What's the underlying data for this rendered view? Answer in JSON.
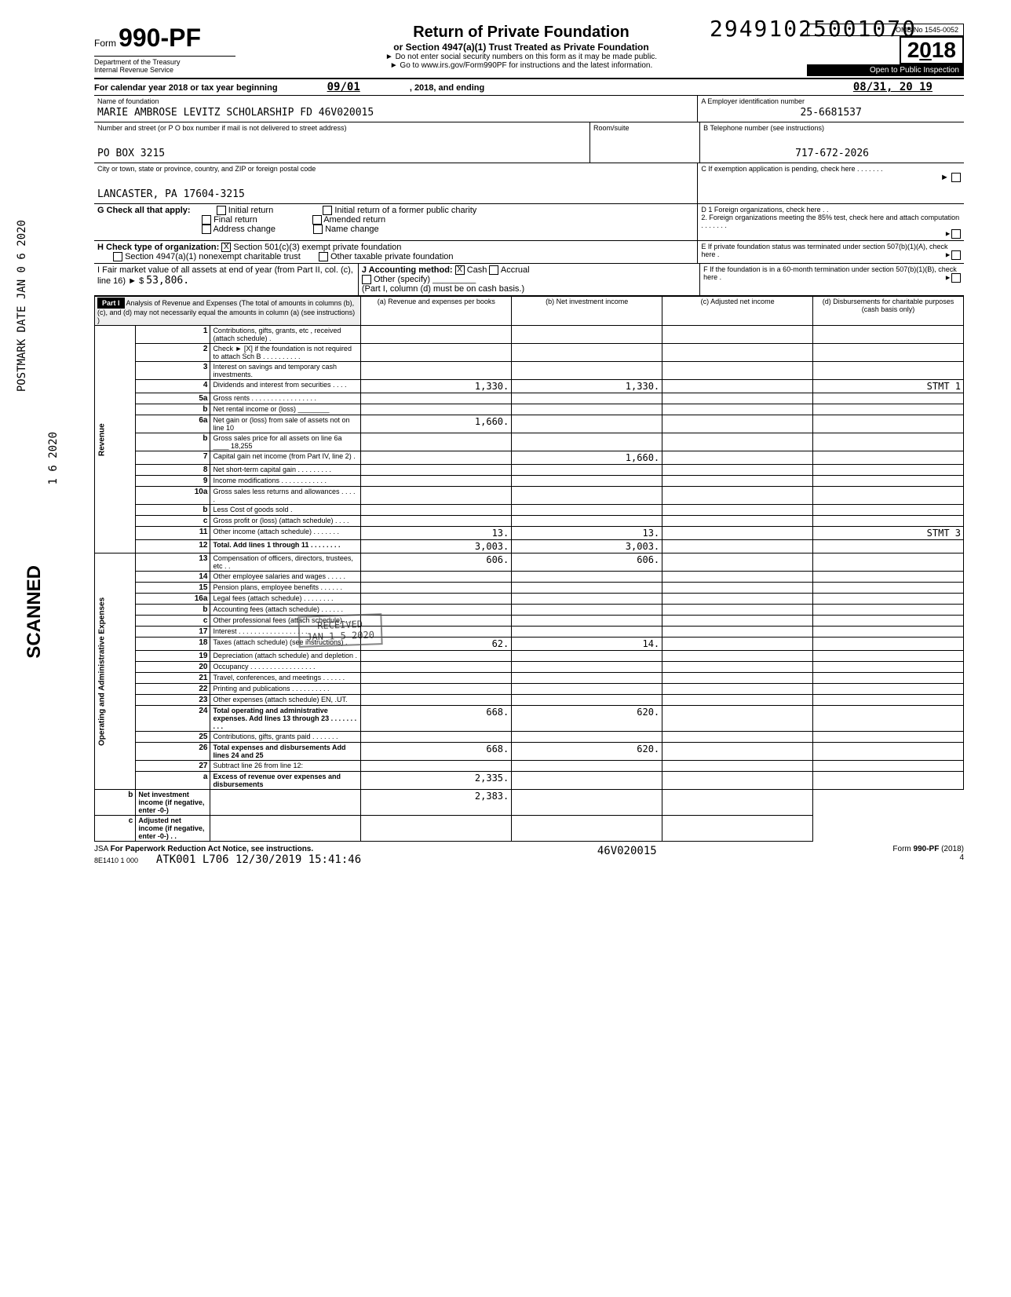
{
  "stamp_top": "29491025001070",
  "form": {
    "prefix": "Form",
    "number": "990-PF",
    "dept1": "Department of the Treasury",
    "dept2": "Internal Revenue Service",
    "title": "Return of Private Foundation",
    "subtitle": "or Section 4947(a)(1) Trust Treated as Private Foundation",
    "warn": "► Do not enter social security numbers on this form as it may be made public.",
    "goto": "► Go to www.irs.gov/Form990PF for instructions and the latest information.",
    "omb": "OMB No 1545-0052",
    "year": "2018",
    "inspect": "Open to Public Inspection"
  },
  "cal": {
    "text": "For calendar year 2018 or tax year beginning",
    "begin": "09/01",
    "mid": ", 2018, and ending",
    "end": "08/31, 20 19"
  },
  "name_lbl": "Name of foundation",
  "name": "MARIE AMBROSE LEVITZ SCHOLARSHIP FD 46V020015",
  "addr_lbl": "Number and street (or P O box number if mail is not delivered to street address)",
  "room_lbl": "Room/suite",
  "addr": "PO BOX 3215",
  "city_lbl": "City or town, state or province, country, and ZIP or foreign postal code",
  "city": "LANCASTER, PA 17604-3215",
  "ein_lbl": "A  Employer identification number",
  "ein": "25-6681537",
  "tel_lbl": "B  Telephone number (see instructions)",
  "tel": "717-672-2026",
  "c_lbl": "C  If exemption application is pending, check here . . . . . . .",
  "g_lbl": "G Check all that apply:",
  "g_opts": [
    "Initial return",
    "Final return",
    "Address change",
    "Initial return of a former public charity",
    "Amended return",
    "Name change"
  ],
  "d1": "D  1 Foreign organizations, check here . .",
  "d2": "2. Foreign organizations meeting the 85% test, check here and attach computation . . . . . . .",
  "h_lbl": "H Check type of organization:",
  "h1": "Section 501(c)(3) exempt private foundation",
  "h2": "Section 4947(a)(1) nonexempt charitable trust",
  "h3": "Other taxable private foundation",
  "e_lbl": "E  If private foundation status was terminated under section 507(b)(1)(A), check here .",
  "i_lbl": "I  Fair market value of all assets at end of year (from Part II, col. (c), line 16) ► $",
  "i_val": "53,806.",
  "j_lbl": "J Accounting method:",
  "j_cash": "Cash",
  "j_accr": "Accrual",
  "j_other": "Other (specify)",
  "j_note": "(Part I, column (d) must be on cash basis.)",
  "f_lbl": "F  If the foundation is in a 60-month termination under section 507(b)(1)(B), check here .",
  "part1": "Part I",
  "part1_title": "Analysis of Revenue and Expenses (The total of amounts in columns (b), (c), and (d) may not necessarily equal the amounts in column (a) (see instructions) )",
  "cols": {
    "a": "(a) Revenue and expenses per books",
    "b": "(b) Net investment income",
    "c": "(c) Adjusted net income",
    "d": "(d) Disbursements for charitable purposes (cash basis only)"
  },
  "rows": [
    {
      "n": "1",
      "d": "Contributions, gifts, grants, etc , received (attach schedule) .",
      "a": "",
      "b": "",
      "c": "",
      "dd": ""
    },
    {
      "n": "2",
      "d": "Check ► [X] if the foundation is not required to attach Sch B . . . . . . . . . .",
      "a": "",
      "b": "",
      "c": "",
      "dd": ""
    },
    {
      "n": "3",
      "d": "Interest on savings and temporary cash investments.",
      "a": "",
      "b": "",
      "c": "",
      "dd": ""
    },
    {
      "n": "4",
      "d": "Dividends and interest from securities . . . .",
      "a": "1,330.",
      "b": "1,330.",
      "c": "",
      "dd": "STMT 1"
    },
    {
      "n": "5a",
      "d": "Gross rents . . . . . . . . . . . . . . . . .",
      "a": "",
      "b": "",
      "c": "",
      "dd": ""
    },
    {
      "n": "b",
      "d": "Net rental income or (loss) ________",
      "a": "",
      "b": "",
      "c": "",
      "dd": ""
    },
    {
      "n": "6a",
      "d": "Net gain or (loss) from sale of assets not on line 10",
      "a": "1,660.",
      "b": "",
      "c": "",
      "dd": ""
    },
    {
      "n": "b",
      "d": "Gross sales price for all assets on line 6a ____ 18,255",
      "a": "",
      "b": "",
      "c": "",
      "dd": ""
    },
    {
      "n": "7",
      "d": "Capital gain net income (from Part IV, line 2) .",
      "a": "",
      "b": "1,660.",
      "c": "",
      "dd": ""
    },
    {
      "n": "8",
      "d": "Net short-term capital gain . . . . . . . . .",
      "a": "",
      "b": "",
      "c": "",
      "dd": ""
    },
    {
      "n": "9",
      "d": "Income modifications . . . . . . . . . . . .",
      "a": "",
      "b": "",
      "c": "",
      "dd": ""
    },
    {
      "n": "10a",
      "d": "Gross sales less returns and allowances . . . . .",
      "a": "",
      "b": "",
      "c": "",
      "dd": ""
    },
    {
      "n": "b",
      "d": "Less Cost of goods sold .",
      "a": "",
      "b": "",
      "c": "",
      "dd": ""
    },
    {
      "n": "c",
      "d": "Gross profit or (loss) (attach schedule) . . . .",
      "a": "",
      "b": "",
      "c": "",
      "dd": ""
    },
    {
      "n": "11",
      "d": "Other income (attach schedule) . . . . . . .",
      "a": "13.",
      "b": "13.",
      "c": "",
      "dd": "STMT 3"
    },
    {
      "n": "12",
      "d": "Total. Add lines 1 through 11 . . . . . . . .",
      "a": "3,003.",
      "b": "3,003.",
      "c": "",
      "dd": "",
      "bold": true
    },
    {
      "n": "13",
      "d": "Compensation of officers, directors, trustees, etc . .",
      "a": "606.",
      "b": "606.",
      "c": "",
      "dd": ""
    },
    {
      "n": "14",
      "d": "Other employee salaries and wages . . . . .",
      "a": "",
      "b": "",
      "c": "",
      "dd": ""
    },
    {
      "n": "15",
      "d": "Pension plans, employee benefits . . . . . .",
      "a": "",
      "b": "",
      "c": "",
      "dd": ""
    },
    {
      "n": "16a",
      "d": "Legal fees (attach schedule) . . . . . . . .",
      "a": "",
      "b": "",
      "c": "",
      "dd": ""
    },
    {
      "n": "b",
      "d": "Accounting fees (attach schedule) . . . . . .",
      "a": "",
      "b": "",
      "c": "",
      "dd": ""
    },
    {
      "n": "c",
      "d": "Other professional fees (attach schedule) . . .",
      "a": "",
      "b": "",
      "c": "",
      "dd": ""
    },
    {
      "n": "17",
      "d": "Interest . . . . . . . . . . . . . . . . . .",
      "a": "",
      "b": "",
      "c": "",
      "dd": ""
    },
    {
      "n": "18",
      "d": "Taxes (attach schedule) (see instructions) .",
      "a": "62.",
      "b": "14.",
      "c": "",
      "dd": ""
    },
    {
      "n": "19",
      "d": "Depreciation (attach schedule) and depletion .",
      "a": "",
      "b": "",
      "c": "",
      "dd": ""
    },
    {
      "n": "20",
      "d": "Occupancy . . . . . . . . . . . . . . . . .",
      "a": "",
      "b": "",
      "c": "",
      "dd": ""
    },
    {
      "n": "21",
      "d": "Travel, conferences, and meetings . . . . . .",
      "a": "",
      "b": "",
      "c": "",
      "dd": ""
    },
    {
      "n": "22",
      "d": "Printing and publications . . . . . . . . . .",
      "a": "",
      "b": "",
      "c": "",
      "dd": ""
    },
    {
      "n": "23",
      "d": "Other expenses (attach schedule) EN, .UT.",
      "a": "",
      "b": "",
      "c": "",
      "dd": ""
    },
    {
      "n": "24",
      "d": "Total operating and administrative expenses. Add lines 13 through 23 . . . . . . . . . .",
      "a": "668.",
      "b": "620.",
      "c": "",
      "dd": "",
      "bold": true
    },
    {
      "n": "25",
      "d": "Contributions, gifts, grants paid . . . . . . .",
      "a": "",
      "b": "",
      "c": "",
      "dd": ""
    },
    {
      "n": "26",
      "d": "Total expenses and disbursements Add lines 24 and 25",
      "a": "668.",
      "b": "620.",
      "c": "",
      "dd": "",
      "bold": true
    },
    {
      "n": "27",
      "d": "Subtract line 26 from line 12:",
      "a": "",
      "b": "",
      "c": "",
      "dd": ""
    },
    {
      "n": "a",
      "d": "Excess of revenue over expenses and disbursements",
      "a": "2,335.",
      "b": "",
      "c": "",
      "dd": "",
      "bold": true
    },
    {
      "n": "b",
      "d": "Net investment income (if negative, enter -0-)",
      "a": "",
      "b": "2,383.",
      "c": "",
      "dd": "",
      "bold": true
    },
    {
      "n": "c",
      "d": "Adjusted net income (if negative, enter -0-) . .",
      "a": "",
      "b": "",
      "c": "",
      "dd": "",
      "bold": true
    }
  ],
  "side_rev": "Revenue",
  "side_exp": "Operating and Administrative Expenses",
  "footer": {
    "jsa": "JSA",
    "pra": "For Paperwork Reduction Act Notice, see instructions.",
    "code": "8E1410 1 000",
    "batch": "ATK001 L706 12/30/2019 15:41:46",
    "acct": "46V020015",
    "form": "Form 990-PF (2018)",
    "pg": "4"
  },
  "vert1": "POSTMARK DATE",
  "vert2": "JAN 0 6 2020",
  "vert3": "1 6 2020",
  "scanned": "SCANNED",
  "received": {
    "l1": "RECEIVED",
    "l2": "JAN 1 5 2020"
  }
}
